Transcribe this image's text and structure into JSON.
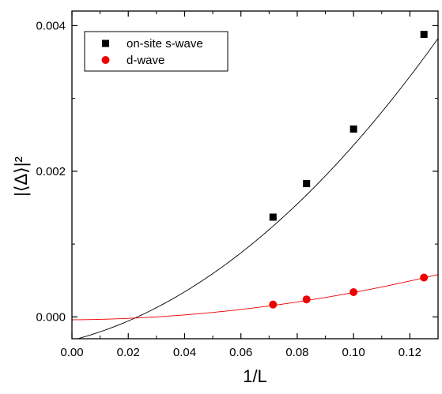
{
  "chart_data": {
    "type": "scatter",
    "xlabel": "1/L",
    "ylabel": "|⟨Δ⟩|²",
    "xlim": [
      0.0,
      0.13
    ],
    "ylim": [
      -0.0003,
      0.0042
    ],
    "x_ticks": [
      0.0,
      0.02,
      0.04,
      0.06,
      0.08,
      0.1,
      0.12
    ],
    "x_tick_labels": [
      "0.00",
      "0.02",
      "0.04",
      "0.06",
      "0.08",
      "0.10",
      "0.12"
    ],
    "y_ticks": [
      0.0,
      0.002,
      0.004
    ],
    "y_tick_labels": [
      "0.000",
      "0.002",
      "0.004"
    ],
    "grid": false,
    "legend_position": "top-left",
    "series": [
      {
        "name": "on-site s-wave",
        "marker": "square",
        "color": "#000000",
        "x": [
          0.0714,
          0.0833,
          0.1,
          0.125
        ],
        "y": [
          0.00137,
          0.00183,
          0.00258,
          0.00388
        ],
        "fit": {
          "type": "quadratic",
          "coeffs": [
            -0.00032,
            0.0098,
            0.1698
          ]
        }
      },
      {
        "name": "d-wave",
        "marker": "circle",
        "color": "#ee0000",
        "x": [
          0.0714,
          0.0833,
          0.1,
          0.125
        ],
        "y": [
          0.00017,
          0.00024,
          0.00034,
          0.00054
        ],
        "fit": {
          "type": "quadratic",
          "coeffs": [
            -4e-05,
            0.0003,
            0.0345
          ]
        }
      }
    ]
  }
}
